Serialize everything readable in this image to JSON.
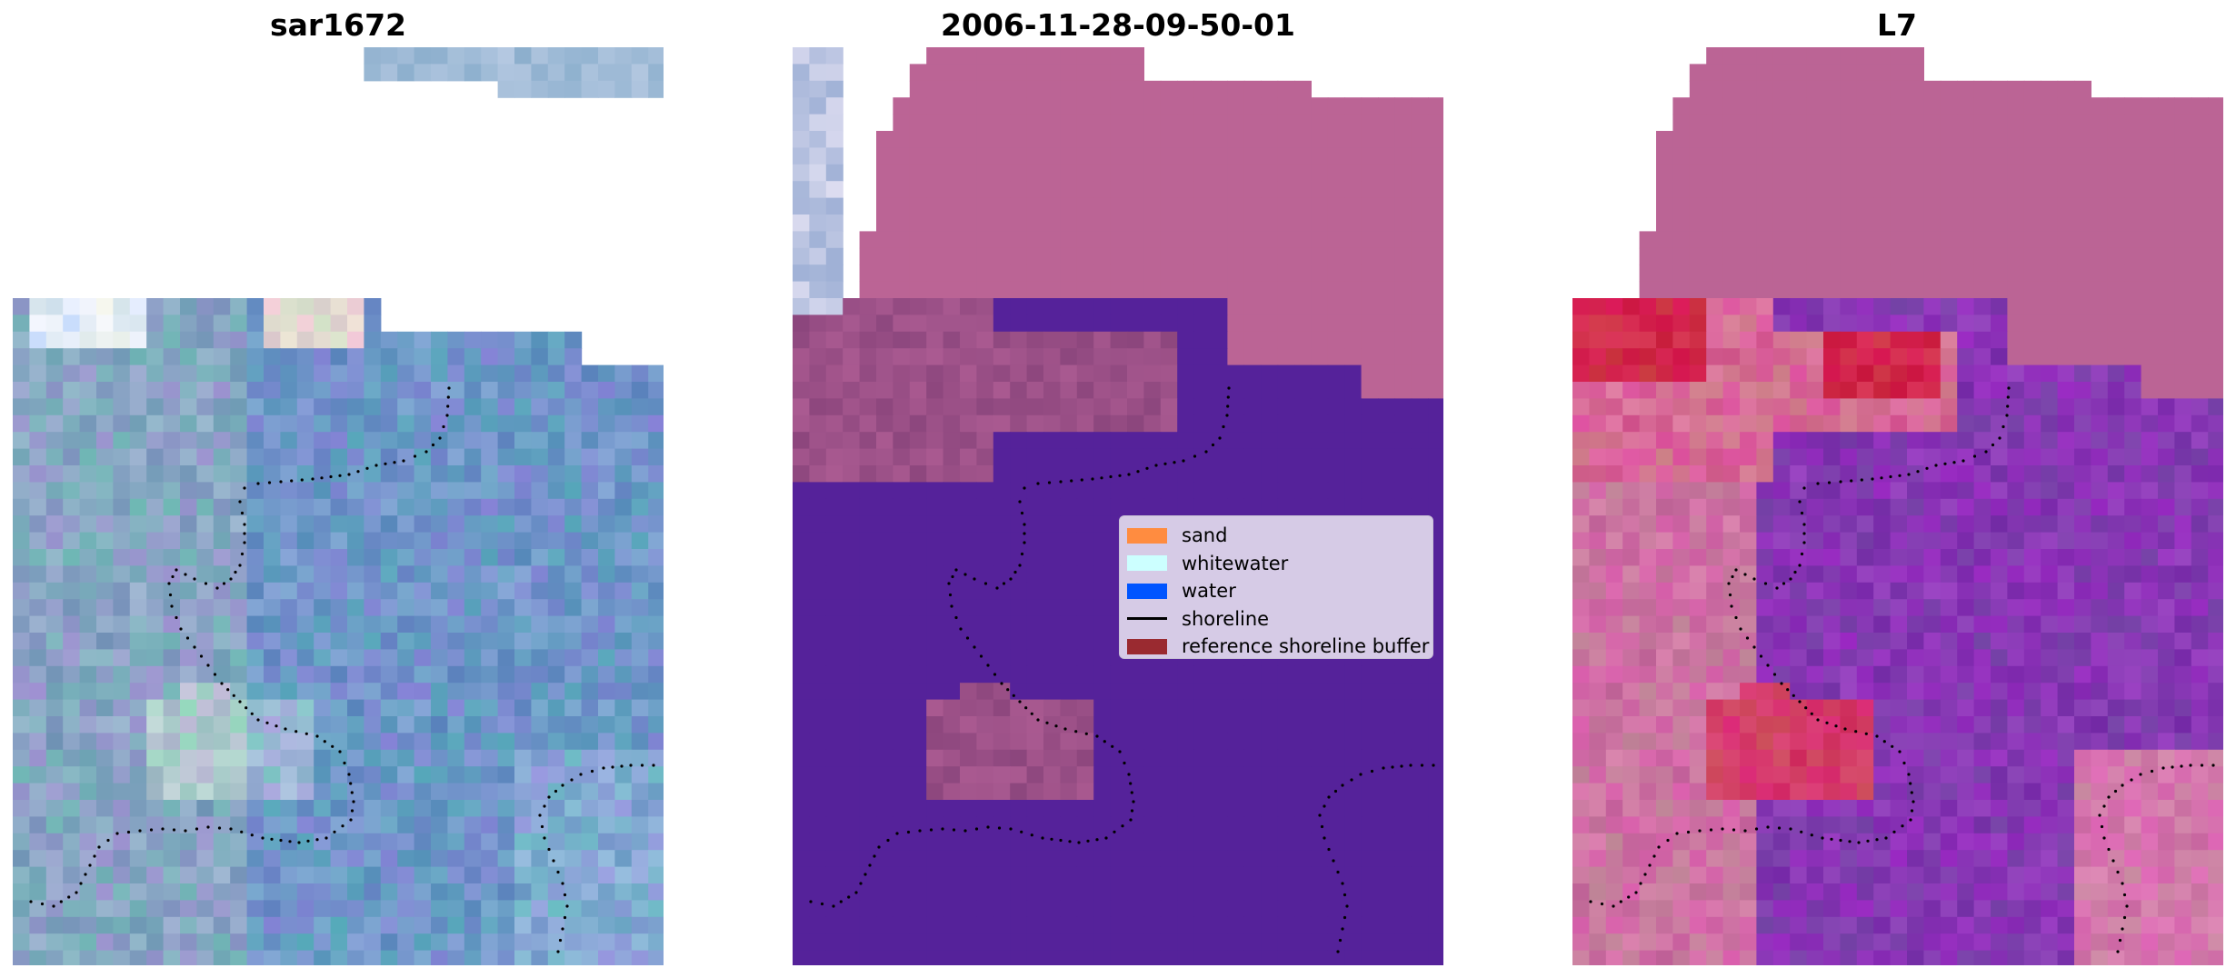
{
  "panels": [
    {
      "title": "sar1672",
      "style": "rgb-composite"
    },
    {
      "title": "2006-11-28-09-50-01",
      "style": "classified-overlay"
    },
    {
      "title": "L7",
      "style": "probability-overlay"
    }
  ],
  "legend": {
    "items": [
      {
        "label": "sand",
        "kind": "patch",
        "color": "#ff8c40"
      },
      {
        "label": "whitewater",
        "kind": "patch",
        "color": "#ccffff"
      },
      {
        "label": "water",
        "kind": "patch",
        "color": "#0055ff"
      },
      {
        "label": "shoreline",
        "kind": "line",
        "color": "#000000"
      },
      {
        "label": "reference shoreline buffer",
        "kind": "patch",
        "color": "#9a2a30"
      }
    ]
  },
  "colors": {
    "classified_purple": "#55229a",
    "mask_pink": "#bb6495",
    "sand_overlay": "#8f4a82",
    "rgb_water_blue": "#6d9bcc",
    "l7_purple": "#7425a6",
    "l7_red": "#c8103c"
  }
}
